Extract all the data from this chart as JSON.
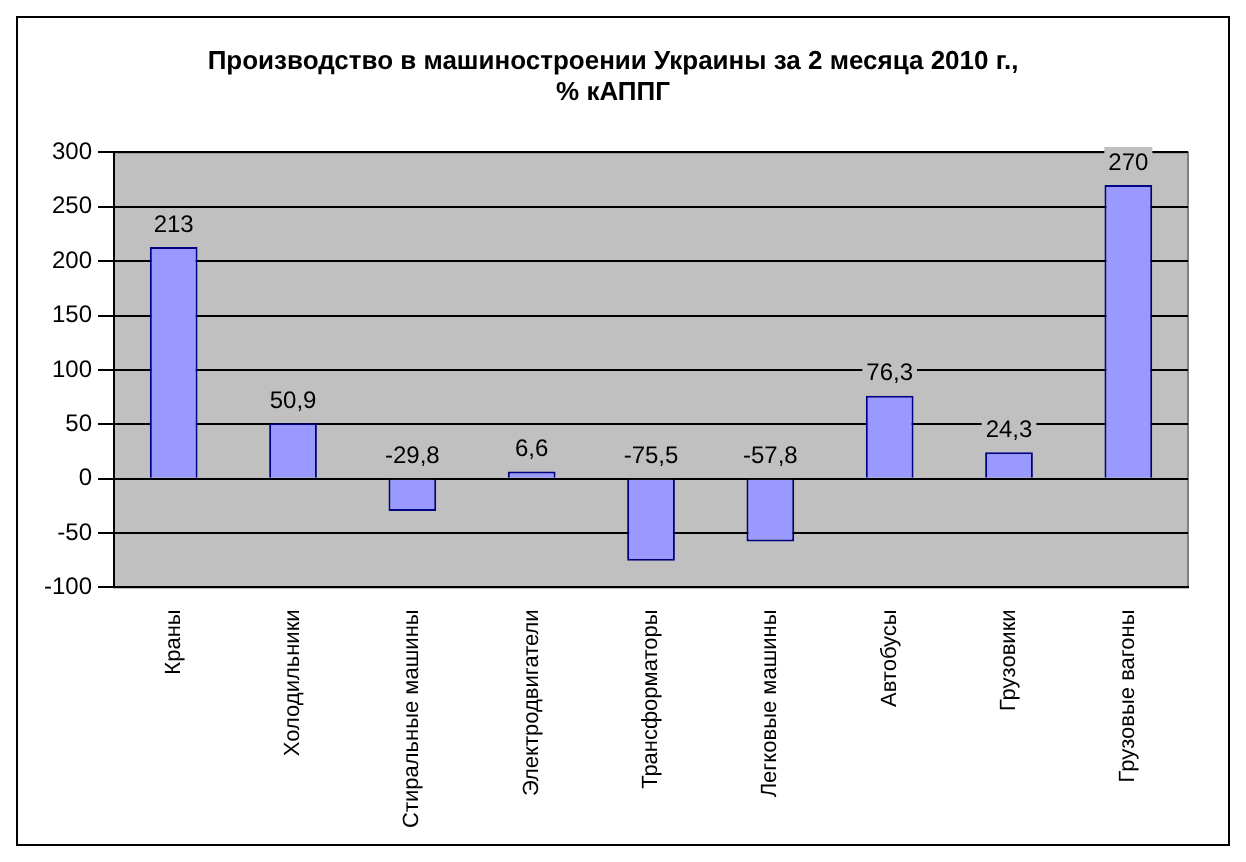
{
  "chart_data": {
    "type": "bar",
    "title": "Производство в машиностроении Украины за 2 месяца 2010 г.,\n% кАППГ",
    "categories": [
      "Краны",
      "Холодильники",
      "Стиральные машины",
      "Электродвигатели",
      "Трансформаторы",
      "Легковые машины",
      "Автобусы",
      "Грузовики",
      "Грузовые вагоны"
    ],
    "values": [
      213,
      50.9,
      -29.8,
      6.6,
      -75.5,
      -57.8,
      76.3,
      24.3,
      270
    ],
    "color": "#9999ff",
    "ylim": [
      -100,
      300
    ],
    "yticks": [
      -100,
      -50,
      0,
      50,
      100,
      150,
      200,
      250,
      300
    ],
    "value_labels": [
      "213",
      "50,9",
      "-29,8",
      "6,6",
      "-75,5",
      "-57,8",
      "76,3",
      "24,3",
      "270"
    ],
    "grid": "y",
    "legend": false
  }
}
